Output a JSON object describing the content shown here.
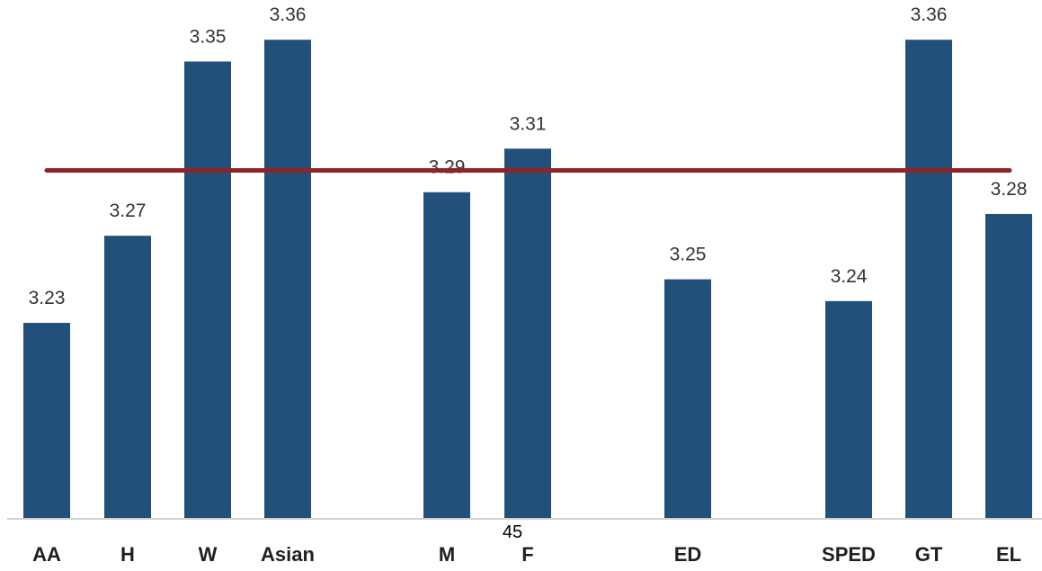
{
  "chart_data": {
    "type": "bar",
    "categories": [
      "AA",
      "H",
      "W",
      "Asian",
      "M",
      "F",
      "ED",
      "SPED",
      "GT",
      "EL"
    ],
    "values": [
      3.23,
      3.27,
      3.35,
      3.36,
      3.29,
      3.31,
      3.25,
      3.24,
      3.36,
      3.28
    ],
    "value_labels": [
      "3.23",
      "3.27",
      "3.35",
      "3.36",
      "3.29",
      "3.31",
      "3.25",
      "3.24",
      "3.36",
      "3.28"
    ],
    "reference_line": 3.3,
    "ylim": [
      3.14,
      3.37
    ],
    "title": "",
    "xlabel": "",
    "ylabel": "",
    "grid": false,
    "colors": {
      "bar": "#22507a",
      "reference_line": "#8f2424",
      "axis": "#d0d0d0"
    }
  },
  "page_number": "45"
}
